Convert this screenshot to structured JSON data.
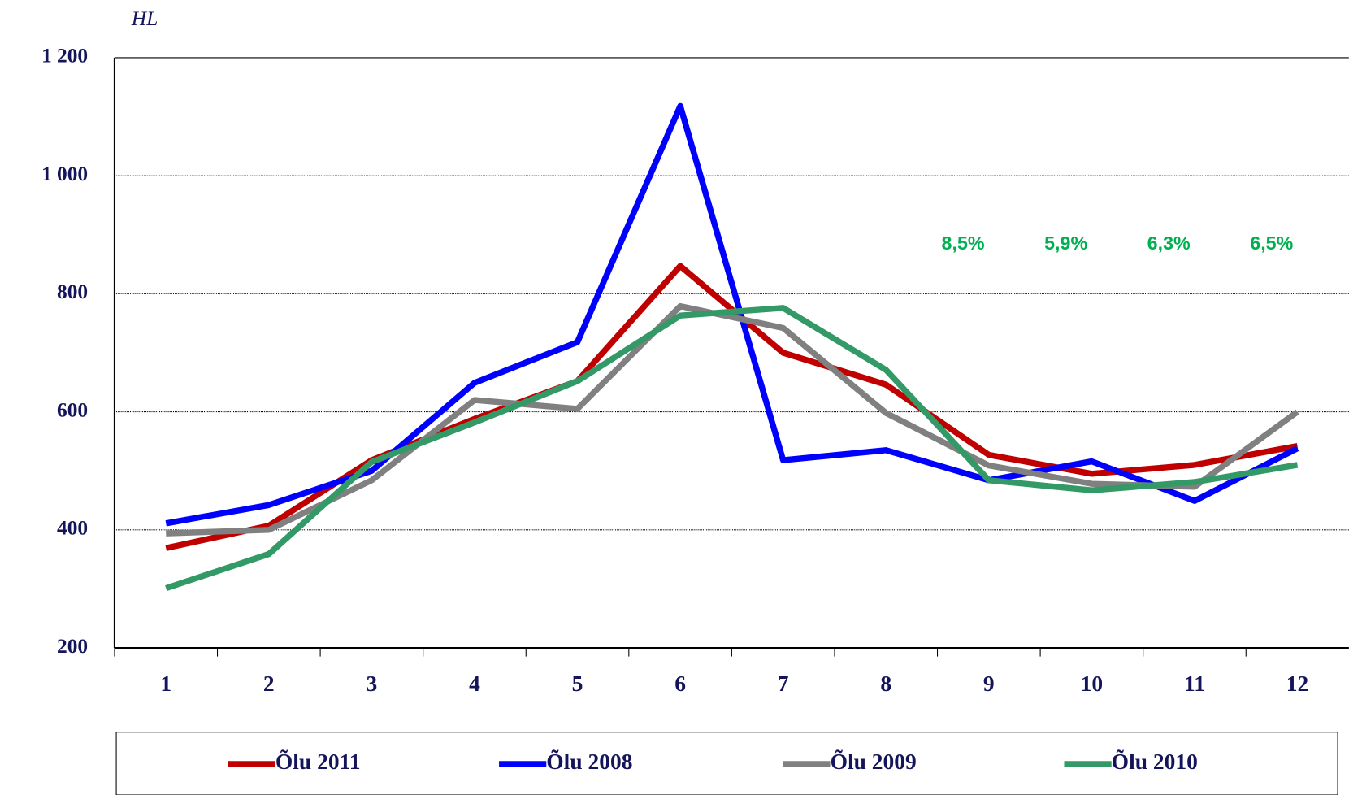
{
  "chart_data": {
    "type": "line",
    "y_axis_label": "HL",
    "categories": [
      "1",
      "2",
      "3",
      "4",
      "5",
      "6",
      "7",
      "8",
      "9",
      "10",
      "11",
      "12"
    ],
    "series": [
      {
        "name": "Õlu 2011",
        "color": "#c00000",
        "values": [
          369,
          407,
          518,
          588,
          652,
          847,
          700,
          646,
          527,
          495,
          510,
          542
        ]
      },
      {
        "name": "Õlu 2008",
        "color": "#0000ff",
        "values": [
          411,
          442,
          500,
          649,
          718,
          1118,
          518,
          535,
          484,
          516,
          449,
          538
        ]
      },
      {
        "name": "Õlu 2009",
        "color": "#808080",
        "values": [
          394,
          400,
          484,
          620,
          605,
          779,
          742,
          598,
          509,
          478,
          473,
          600
        ]
      },
      {
        "name": "Õlu 2010",
        "color": "#339966",
        "values": [
          301,
          359,
          515,
          582,
          652,
          763,
          776,
          671,
          484,
          467,
          481,
          510
        ]
      }
    ],
    "annotations": [
      "8,5%",
      "5,9%",
      "6,3%",
      "6,5%"
    ],
    "ylim": [
      200,
      1200
    ],
    "yticks": [
      200,
      400,
      600,
      800,
      {
        "value": 1000,
        "label": "1 000"
      },
      {
        "value": 1200,
        "label": "1 200"
      }
    ],
    "grid": true,
    "legend": "bottom"
  }
}
